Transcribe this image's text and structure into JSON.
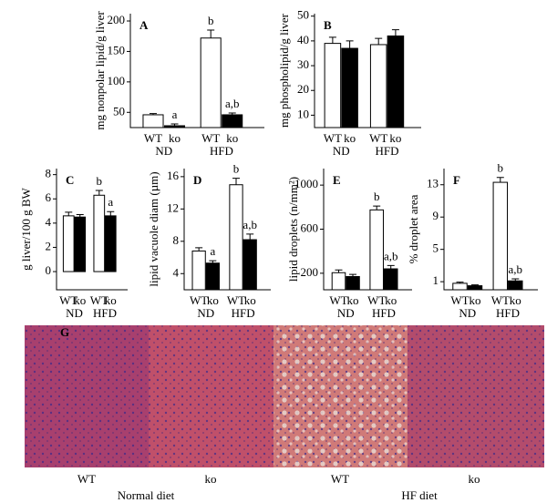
{
  "chart_data": [
    {
      "type": "bar",
      "panel_label": "A",
      "ylabel": "mg nonpolar lipid/g liver",
      "categories": [
        "WT",
        "ko",
        "WT",
        "ko"
      ],
      "groups": [
        "ND",
        "HFD"
      ],
      "values": [
        46,
        28,
        172,
        46
      ],
      "errors": [
        2,
        3,
        13,
        3
      ],
      "colors": [
        "#ffffff",
        "#000000",
        "#ffffff",
        "#000000"
      ],
      "annotations": [
        null,
        "a",
        "b",
        "a,b"
      ],
      "ylim": [
        25,
        212
      ],
      "yticks": [
        50,
        100,
        150,
        200
      ]
    },
    {
      "type": "bar",
      "panel_label": "B",
      "ylabel": "mg phospholipid/g liver",
      "categories": [
        "WT",
        "ko",
        "WT",
        "ko"
      ],
      "groups": [
        "ND",
        "HFD"
      ],
      "values": [
        39,
        37,
        38.5,
        42
      ],
      "errors": [
        2.5,
        3,
        2.5,
        2.5
      ],
      "colors": [
        "#ffffff",
        "#000000",
        "#ffffff",
        "#000000"
      ],
      "annotations": [
        null,
        null,
        null,
        null
      ],
      "ylim": [
        5,
        51
      ],
      "yticks": [
        10,
        20,
        30,
        40,
        50
      ]
    },
    {
      "type": "bar",
      "panel_label": "C",
      "ylabel": "g liver/100 g BW",
      "categories": [
        "WT",
        "ko",
        "WT",
        "ko"
      ],
      "groups": [
        "ND",
        "HFD"
      ],
      "values": [
        4.6,
        4.5,
        6.3,
        4.6
      ],
      "errors": [
        0.3,
        0.2,
        0.4,
        0.35
      ],
      "colors": [
        "#ffffff",
        "#000000",
        "#ffffff",
        "#000000"
      ],
      "annotations": [
        null,
        null,
        "b",
        "a"
      ],
      "ylim": [
        -1.5,
        8.5
      ],
      "yticks": [
        0,
        2,
        4,
        6,
        8
      ]
    },
    {
      "type": "bar",
      "panel_label": "D",
      "ylabel": "lipid vacuole diam (µm)",
      "categories": [
        "WT",
        "ko",
        "WT",
        "ko"
      ],
      "groups": [
        "ND",
        "HFD"
      ],
      "values": [
        6.8,
        5.3,
        15,
        8.2
      ],
      "errors": [
        0.4,
        0.3,
        0.8,
        0.7
      ],
      "colors": [
        "#ffffff",
        "#000000",
        "#ffffff",
        "#000000"
      ],
      "annotations": [
        null,
        "a",
        "b",
        "a,b"
      ],
      "ylim": [
        2,
        17
      ],
      "yticks": [
        4,
        8,
        12,
        16
      ]
    },
    {
      "type": "bar",
      "panel_label": "E",
      "ylabel": "lipid droplets (n/mm²)",
      "categories": [
        "WT",
        "ko",
        "WT",
        "ko"
      ],
      "groups": [
        "ND",
        "HFD"
      ],
      "values": [
        205,
        170,
        775,
        240
      ],
      "errors": [
        25,
        20,
        35,
        30
      ],
      "colors": [
        "#ffffff",
        "#000000",
        "#ffffff",
        "#000000"
      ],
      "annotations": [
        null,
        null,
        "b",
        "a,b"
      ],
      "ylim": [
        50,
        1150
      ],
      "yticks": [
        200,
        600,
        1000
      ]
    },
    {
      "type": "bar",
      "panel_label": "F",
      "ylabel": "% droplet area",
      "categories": [
        "WT",
        "ko",
        "WT",
        "ko"
      ],
      "groups": [
        "ND",
        "HFD"
      ],
      "values": [
        0.8,
        0.5,
        13.3,
        1.1
      ],
      "errors": [
        0.15,
        0.1,
        0.6,
        0.25
      ],
      "colors": [
        "#ffffff",
        "#000000",
        "#ffffff",
        "#000000"
      ],
      "annotations": [
        null,
        null,
        "b",
        "a,b"
      ],
      "ylim": [
        0,
        15
      ],
      "yticks": [
        1,
        5,
        9,
        13
      ]
    }
  ],
  "figure_g": {
    "panel_label": "G",
    "panels": [
      "WT",
      "ko",
      "WT",
      "ko"
    ],
    "groups": [
      "Normal diet",
      "HF diet"
    ]
  }
}
